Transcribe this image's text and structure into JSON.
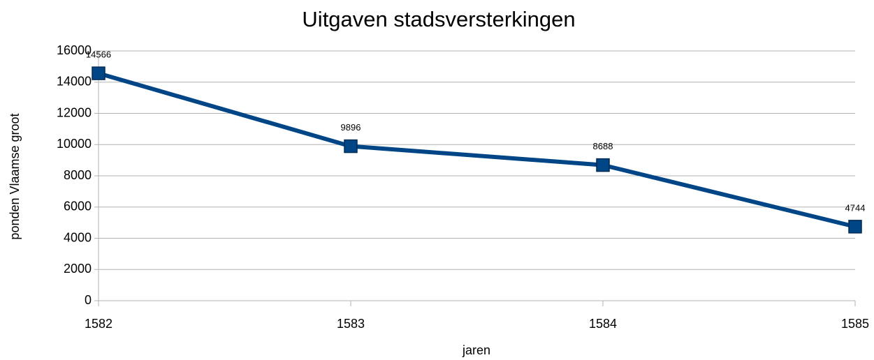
{
  "chart_data": {
    "type": "line",
    "title": "Uitgaven stadsversterkingen",
    "x_label": "jaren",
    "y_label": "ponden Vlaamse groot",
    "x": [
      1582,
      1583,
      1584,
      1585
    ],
    "values": [
      14566,
      9896,
      8688,
      4744
    ],
    "color": "#004586",
    "data_labels": true,
    "xlim": [
      1582,
      1585
    ],
    "xticks": [
      1582,
      1583,
      1584,
      1585
    ],
    "ylim": [
      0,
      16000
    ],
    "yticks": [
      0,
      2000,
      4000,
      6000,
      8000,
      10000,
      12000,
      14000,
      16000
    ],
    "grid": true
  }
}
